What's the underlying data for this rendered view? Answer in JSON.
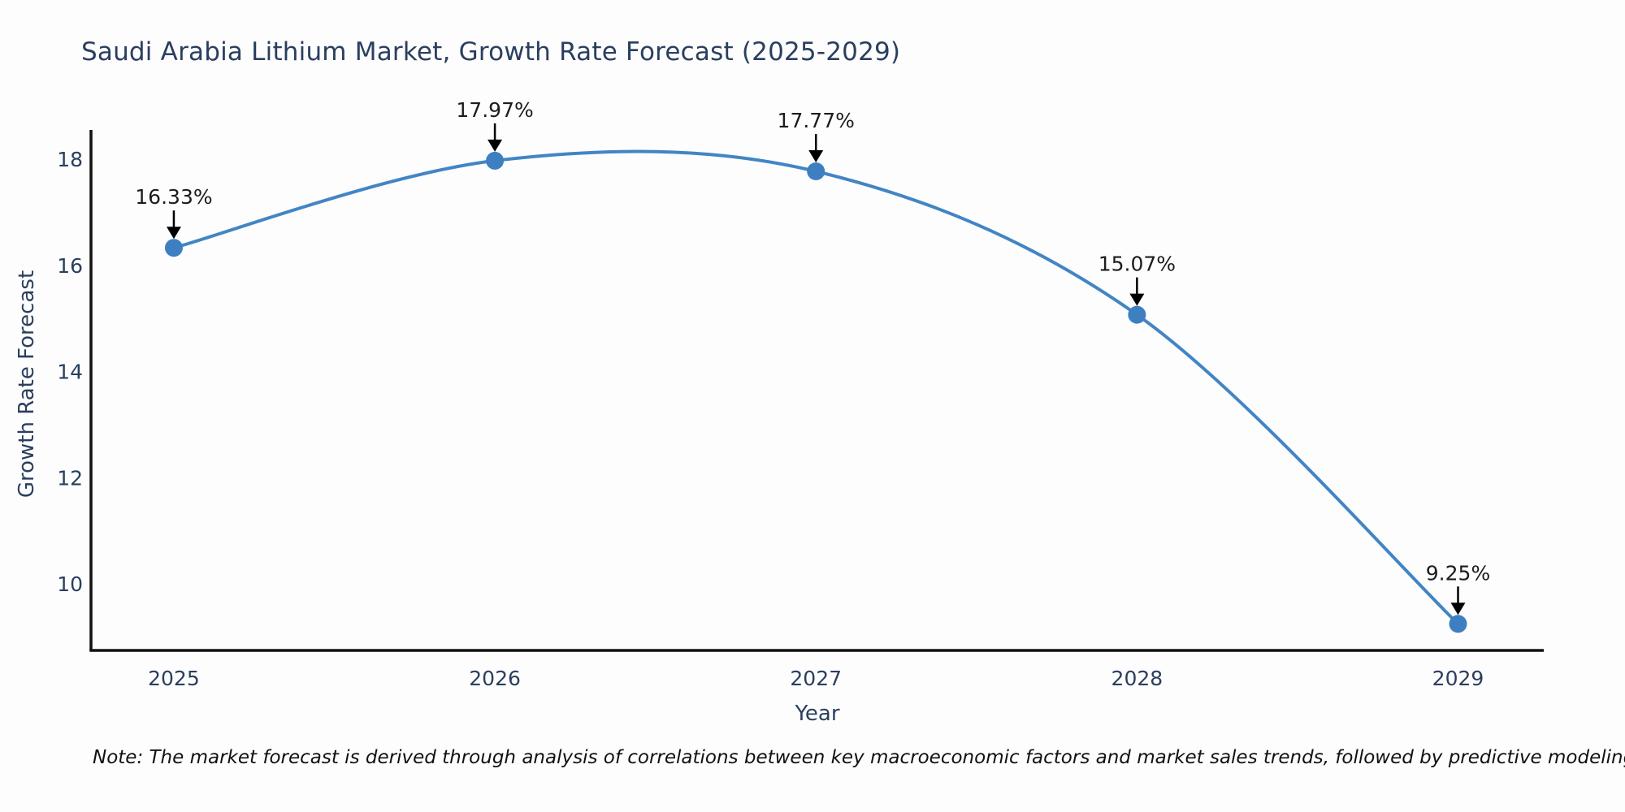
{
  "chart_data": {
    "type": "line",
    "title": "Saudi Arabia Lithium Market, Growth Rate Forecast (2025-2029)",
    "xlabel": "Year",
    "ylabel": "Growth Rate Forecast",
    "x": [
      2025,
      2026,
      2027,
      2028,
      2029
    ],
    "y": [
      16.33,
      17.97,
      17.77,
      15.07,
      9.25
    ],
    "point_labels": [
      "16.33%",
      "17.97%",
      "17.77%",
      "15.07%",
      "9.25%"
    ],
    "x_ticks": [
      "2025",
      "2026",
      "2027",
      "2028",
      "2029"
    ],
    "y_ticks": [
      10,
      12,
      14,
      16,
      18
    ],
    "x_range": [
      2024.742,
      2029.267
    ],
    "y_range": [
      8.75,
      18.55
    ],
    "line_shape": "spline",
    "grid": false,
    "legend": "none",
    "colors": {
      "line": "#4285c4",
      "marker": "#3d7fc1",
      "axis": "#111111",
      "title_text": "#2a3f5f",
      "tick_text": "#2a3f5f",
      "annotation_text": "#1c1c1c",
      "annotation_arrow": "#000000"
    }
  },
  "note": "Note: The market forecast is derived through analysis of correlations between key macroeconomic factors and market sales trends, followed by predictive modeling to project future sales"
}
